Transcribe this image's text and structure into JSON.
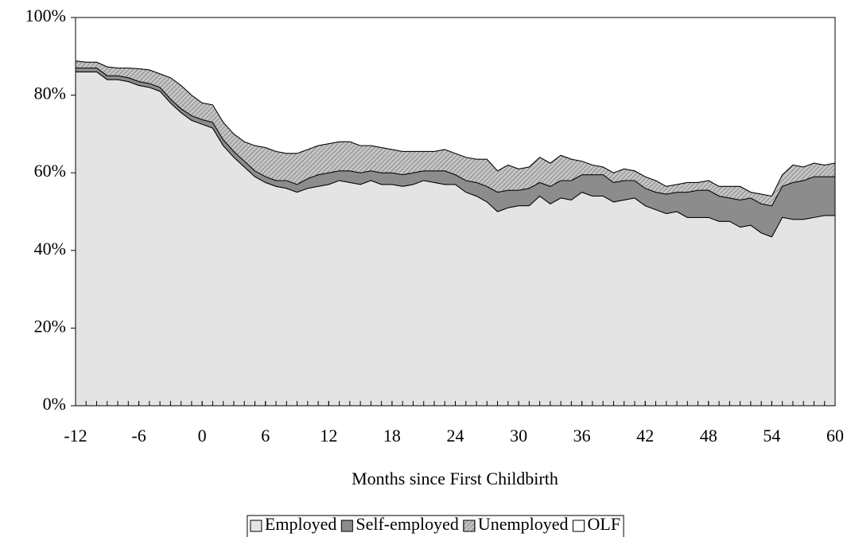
{
  "chart_data": {
    "type": "stacked_area",
    "x_label": "Months since First Childbirth",
    "x": [
      -12,
      -11,
      -10,
      -9,
      -8,
      -7,
      -6,
      -5,
      -4,
      -3,
      -2,
      -1,
      0,
      1,
      2,
      3,
      4,
      5,
      6,
      7,
      8,
      9,
      10,
      11,
      12,
      13,
      14,
      15,
      16,
      17,
      18,
      19,
      20,
      21,
      22,
      23,
      24,
      25,
      26,
      27,
      28,
      29,
      30,
      31,
      32,
      33,
      34,
      35,
      36,
      37,
      38,
      39,
      40,
      41,
      42,
      43,
      44,
      45,
      46,
      47,
      48,
      49,
      50,
      51,
      52,
      53,
      54,
      55,
      56,
      57,
      58,
      59,
      60
    ],
    "xlim": [
      -12,
      60
    ],
    "xticks": [
      -12,
      -6,
      0,
      6,
      12,
      18,
      24,
      30,
      36,
      42,
      48,
      54,
      60
    ],
    "ylim": [
      0,
      100
    ],
    "yticks": [
      {
        "value": 0,
        "label": "0%"
      },
      {
        "value": 20,
        "label": "20%"
      },
      {
        "value": 40,
        "label": "40%"
      },
      {
        "value": 60,
        "label": "60%"
      },
      {
        "value": 80,
        "label": "80%"
      },
      {
        "value": 100,
        "label": "100%"
      }
    ],
    "series": [
      {
        "name": "Employed",
        "color": "#e4e4e4",
        "values": [
          86,
          86,
          86,
          84,
          84,
          83.5,
          82.5,
          82,
          81,
          78,
          75.5,
          73.5,
          72.5,
          71.5,
          67,
          64,
          61.5,
          59,
          57.5,
          56.5,
          56,
          55,
          56,
          56.5,
          57,
          58,
          57.5,
          57,
          58,
          57,
          57,
          56.5,
          57,
          58,
          57.5,
          57,
          57,
          55,
          54,
          52.5,
          50,
          51,
          51.5,
          51.5,
          54,
          52,
          53.5,
          53,
          55,
          54,
          54,
          52.5,
          53,
          53.5,
          51.5,
          50.5,
          49.5,
          50,
          48.5,
          48.5,
          48.5,
          47.5,
          47.5,
          46,
          46.5,
          44.5,
          43.5,
          48.5,
          48,
          48,
          48.5,
          49,
          49
        ]
      },
      {
        "name": "Self-employed",
        "color": "#8c8c8c",
        "values": [
          1,
          1,
          1,
          1,
          1,
          1,
          1,
          1,
          1,
          1,
          1,
          1.2,
          1.2,
          1.5,
          1.5,
          1.5,
          1.5,
          1.5,
          1.5,
          1.5,
          2,
          2,
          2.5,
          3,
          3,
          2.5,
          3,
          3,
          2.5,
          3,
          3,
          3,
          3,
          2.5,
          3,
          3.5,
          2.5,
          3,
          3.5,
          4,
          5,
          4.5,
          4,
          4.5,
          3.5,
          4.5,
          4.5,
          5,
          4.5,
          5.5,
          5.5,
          5,
          5,
          4.5,
          4.5,
          4.5,
          5,
          5,
          6.5,
          7,
          7,
          6.5,
          6,
          7,
          7,
          7.5,
          8,
          8,
          9.5,
          10,
          10.5,
          10,
          10
        ]
      },
      {
        "name": "Unemployed",
        "color": "#c4c4c4",
        "values": [
          1.8,
          1.5,
          1.5,
          2.3,
          2,
          2.5,
          3.3,
          3.5,
          3.5,
          5.5,
          6,
          5.3,
          4.3,
          4.5,
          4.5,
          4.5,
          5,
          6.5,
          7.5,
          7.5,
          7,
          8,
          7.5,
          7.5,
          7.5,
          7.5,
          7.5,
          7,
          6.5,
          6.5,
          6,
          6,
          5.5,
          5,
          5,
          5.5,
          5.5,
          6,
          6,
          7,
          5.5,
          6.5,
          5.5,
          5.5,
          6.5,
          6,
          6.5,
          5.5,
          3.5,
          2.5,
          2,
          2.5,
          3,
          2.5,
          3,
          3,
          2,
          2,
          2.5,
          2,
          2.5,
          2.5,
          3,
          3.5,
          1.5,
          2.5,
          2.5,
          3,
          4.5,
          3.5,
          3.5,
          3,
          3.5
        ]
      },
      {
        "name": "OLF",
        "color": "#ffffff",
        "values": [
          11.2,
          11.5,
          11.5,
          12.7,
          13,
          13,
          13.2,
          13.5,
          14.5,
          15.5,
          17.5,
          20,
          22,
          22.5,
          27,
          30,
          32,
          33,
          33.5,
          34.5,
          35,
          35,
          34,
          33,
          32.5,
          32,
          32,
          33,
          33,
          33.5,
          34,
          34.5,
          34.5,
          34.5,
          34.5,
          34,
          35,
          36,
          36.5,
          36.5,
          39.5,
          38,
          39,
          38.5,
          36,
          37.5,
          35.5,
          36.5,
          37,
          38,
          38.5,
          40,
          39,
          39.5,
          41,
          42,
          43.5,
          43,
          42.5,
          42.5,
          42,
          43.5,
          43.5,
          43.5,
          45,
          45.5,
          46,
          40.5,
          38,
          38.5,
          37.5,
          38,
          37.5
        ]
      }
    ]
  }
}
